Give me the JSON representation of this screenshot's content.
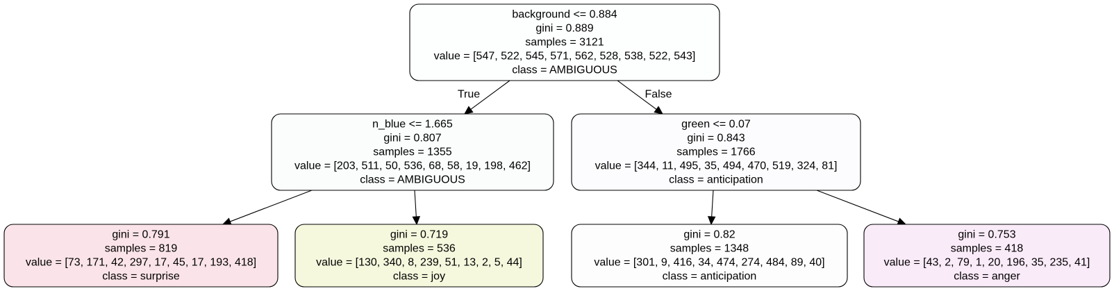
{
  "tree": {
    "nodes": [
      {
        "id": "root",
        "lines": [
          "background <= 0.884",
          "gini = 0.889",
          "samples = 3121",
          "value = [547, 522, 545, 571, 562, 528, 538, 522, 543]",
          "class = AMBIGUOUS"
        ],
        "fill": "#fdfefe"
      },
      {
        "id": "left",
        "lines": [
          "n_blue <= 1.665",
          "gini = 0.807",
          "samples = 1355",
          "value = [203, 511, 50, 536, 68, 58, 19, 198, 462]",
          "class = AMBIGUOUS"
        ],
        "fill": "#fafdfc"
      },
      {
        "id": "right",
        "lines": [
          "green <= 0.07",
          "gini = 0.843",
          "samples = 1766",
          "value = [344, 11, 495, 35, 494, 470, 519, 324, 81]",
          "class = anticipation"
        ],
        "fill": "#fcfcfe"
      },
      {
        "id": "left-left",
        "lines": [
          "gini = 0.791",
          "samples = 819",
          "value = [73, 171, 42, 297, 17, 45, 17, 193, 418]",
          "class = surprise"
        ],
        "fill": "#fbe4e9"
      },
      {
        "id": "left-right",
        "lines": [
          "gini = 0.719",
          "samples = 536",
          "value = [130, 340, 8, 239, 51, 13, 2, 5, 44]",
          "class = joy"
        ],
        "fill": "#f5f8dd"
      },
      {
        "id": "right-left",
        "lines": [
          "gini = 0.82",
          "samples = 1348",
          "value = [301, 9, 416, 34, 474, 274, 484, 89, 40]",
          "class = anticipation"
        ],
        "fill": "#fdfdfe"
      },
      {
        "id": "right-right",
        "lines": [
          "gini = 0.753",
          "samples = 418",
          "value = [43, 2, 79, 1, 20, 196, 35, 235, 41]",
          "class = anger"
        ],
        "fill": "#faebf9"
      }
    ],
    "edges": [
      {
        "from": "root",
        "to": "left",
        "label": "True"
      },
      {
        "from": "root",
        "to": "right",
        "label": "False"
      },
      {
        "from": "left",
        "to": "left-left",
        "label": ""
      },
      {
        "from": "left",
        "to": "left-right",
        "label": ""
      },
      {
        "from": "right",
        "to": "right-left",
        "label": ""
      },
      {
        "from": "right",
        "to": "right-right",
        "label": ""
      }
    ]
  }
}
